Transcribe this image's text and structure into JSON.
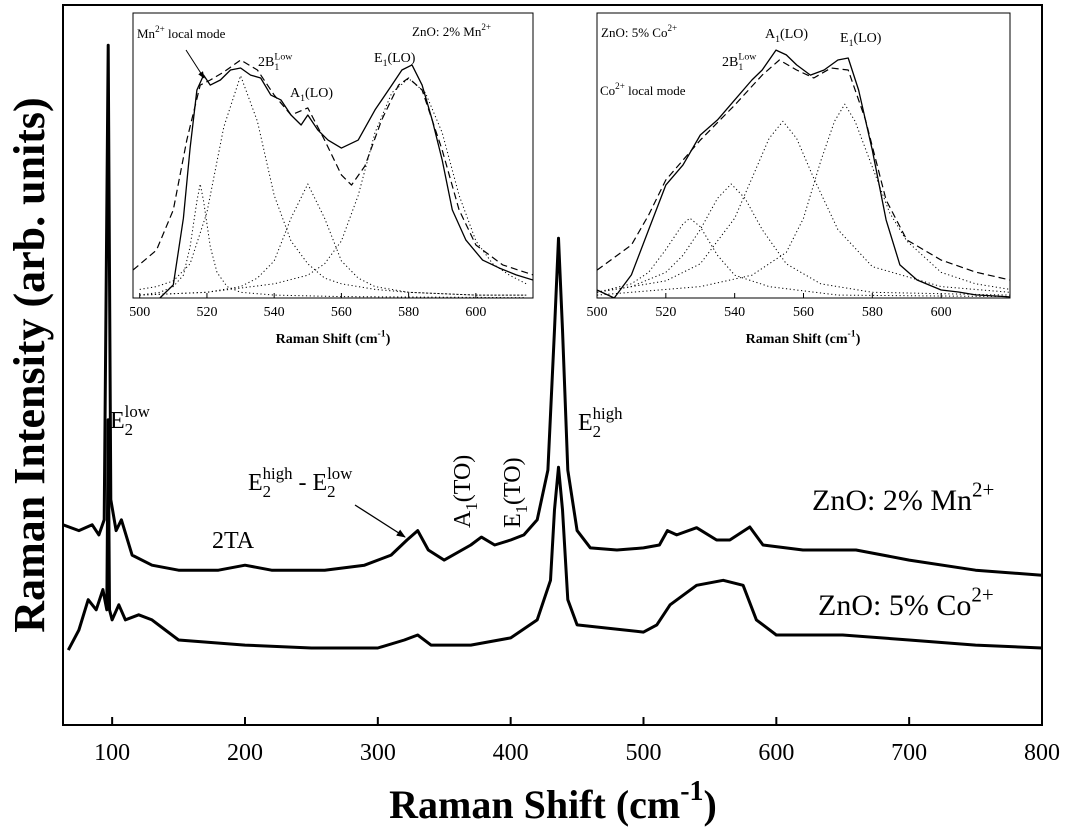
{
  "chart_data": [
    {
      "type": "line",
      "x_label": [
        {
          "t": "Raman Shift (cm"
        },
        {
          "t": "-1",
          "s": "sup"
        },
        {
          "t": ")"
        }
      ],
      "y_label": "Raman Intensity (arb. units)",
      "xlim": [
        63,
        800
      ],
      "ylim": [
        0,
        100
      ],
      "xticks": [
        100,
        200,
        300,
        400,
        500,
        600,
        700,
        800
      ],
      "series": [
        {
          "name": [
            {
              "t": "ZnO: 2% Mn"
            },
            {
              "t": "2+",
              "s": "sup"
            }
          ],
          "color": "#000000",
          "dash": "solid",
          "x": [
            63,
            75,
            85,
            90,
            94,
            97,
            99,
            103,
            107,
            115,
            130,
            150,
            180,
            200,
            220,
            260,
            290,
            310,
            322,
            330,
            338,
            350,
            370,
            378,
            388,
            400,
            410,
            420,
            428,
            433,
            436,
            439,
            443,
            450,
            460,
            480,
            500,
            512,
            518,
            525,
            540,
            555,
            565,
            580,
            590,
            620,
            660,
            700,
            750,
            800
          ],
          "values": [
            27.8,
            27,
            27.8,
            26.4,
            28.5,
            94.4,
            31.3,
            27,
            28.5,
            23.6,
            22.2,
            21.5,
            21.5,
            22.2,
            21.5,
            21.5,
            22.2,
            23.6,
            25.7,
            27,
            24.3,
            22.9,
            25,
            26.1,
            25,
            25.7,
            26.4,
            28.5,
            35.4,
            54.9,
            67.6,
            54.9,
            35.4,
            27,
            24.6,
            24.3,
            24.6,
            25,
            27,
            26.4,
            27.4,
            25.7,
            25.7,
            27.5,
            25,
            24.3,
            24.3,
            22.9,
            21.5,
            20.8
          ]
        },
        {
          "name": [
            {
              "t": "ZnO: 5% Co"
            },
            {
              "t": "2+",
              "s": "sup"
            }
          ],
          "color": "#000000",
          "dash": "solid",
          "x": [
            67,
            75,
            82,
            88,
            93,
            96,
            97,
            98,
            100,
            105,
            110,
            120,
            130,
            140,
            150,
            200,
            250,
            300,
            320,
            330,
            340,
            370,
            400,
            420,
            430,
            433,
            436,
            439,
            443,
            450,
            500,
            510,
            520,
            540,
            560,
            575,
            585,
            600,
            650,
            700,
            750,
            800
          ],
          "values": [
            10.4,
            13.2,
            17.4,
            16,
            18.8,
            16,
            42.4,
            16,
            14.6,
            16.7,
            14.6,
            15.3,
            14.6,
            13.2,
            11.8,
            11.1,
            10.7,
            10.7,
            11.8,
            12.5,
            11.1,
            11.1,
            12.1,
            14.6,
            20.1,
            29.9,
            35.8,
            29.9,
            17.4,
            13.9,
            12.9,
            13.9,
            16.7,
            19.4,
            20.1,
            19.4,
            14.6,
            12.5,
            12.5,
            11.8,
            11.1,
            10.7
          ]
        }
      ],
      "annotations": [
        {
          "parts": [
            {
              "t": "E"
            },
            {
              "t": "2",
              "s": "sub"
            },
            {
              "t": "low",
              "s": "sup"
            }
          ]
        },
        {
          "parts": [
            {
              "t": "2TA"
            }
          ]
        },
        {
          "parts": [
            {
              "t": "E"
            },
            {
              "t": "2",
              "s": "sub"
            },
            {
              "t": "high",
              "s": "sup"
            },
            {
              "t": " - E"
            },
            {
              "t": "2",
              "s": "sub"
            },
            {
              "t": "low",
              "s": "sup"
            }
          ]
        },
        {
          "parts": [
            {
              "t": "A"
            },
            {
              "t": "1",
              "s": "sub"
            },
            {
              "t": "(TO)"
            }
          ]
        },
        {
          "parts": [
            {
              "t": "E"
            },
            {
              "t": "1",
              "s": "sub"
            },
            {
              "t": "(TO)"
            }
          ]
        },
        {
          "parts": [
            {
              "t": "E"
            },
            {
              "t": "2",
              "s": "sub"
            },
            {
              "t": "high",
              "s": "sup"
            }
          ]
        }
      ]
    },
    {
      "type": "line",
      "x_label": [
        {
          "t": "Raman Shift (cm"
        },
        {
          "t": "-1",
          "s": "sup"
        },
        {
          "t": ")"
        }
      ],
      "xlim": [
        498,
        617
      ],
      "ylim": [
        0,
        100
      ],
      "xticks": [
        500,
        520,
        540,
        560,
        580,
        600
      ],
      "series": [
        {
          "color": "#000000",
          "dash": "solid",
          "x": [
            506,
            510,
            513,
            515,
            517,
            519,
            521,
            524,
            527,
            530,
            533,
            536,
            539,
            542,
            545,
            548,
            550,
            553,
            556,
            560,
            565,
            570,
            575,
            578,
            581,
            584,
            587,
            590,
            593,
            597,
            602,
            607,
            612,
            617
          ],
          "values": [
            0,
            4.6,
            28,
            52.6,
            73,
            78.2,
            74.7,
            76.5,
            80,
            80.7,
            78.2,
            77.2,
            71.2,
            69.5,
            64.2,
            60.7,
            64.2,
            58.9,
            55.4,
            52.6,
            55.4,
            66,
            74.7,
            80,
            81.8,
            74.7,
            62.5,
            48.4,
            30.9,
            20.4,
            13.3,
            10.5,
            8.1,
            6.3
          ]
        },
        {
          "color": "#000000",
          "dash": "dashed",
          "x": [
            498,
            505,
            510,
            514,
            518,
            521,
            525,
            530,
            535,
            540,
            545,
            550,
            555,
            560,
            563,
            567,
            572,
            577,
            580,
            584,
            590,
            595,
            600,
            608,
            617
          ],
          "values": [
            9.8,
            16.8,
            30.9,
            55.4,
            74.7,
            76.5,
            79.3,
            83.5,
            80,
            71.2,
            64.2,
            66.7,
            55.4,
            43.2,
            39.6,
            46.3,
            62.5,
            74.7,
            77.2,
            73,
            51.9,
            30.9,
            18.6,
            11.6,
            8.1
          ]
        },
        {
          "color": "#000000",
          "dash": "dotted",
          "x": [
            500,
            506,
            510,
            513,
            515,
            517,
            518,
            519,
            521,
            523,
            526,
            530,
            540,
            560,
            600,
            615
          ],
          "values": [
            1,
            2,
            4,
            8,
            18,
            34,
            40,
            34,
            18,
            9,
            4,
            2,
            1,
            0.5,
            0.2,
            0.1
          ]
        },
        {
          "color": "#000000",
          "dash": "dotted",
          "x": [
            500,
            505,
            510,
            515,
            520,
            525,
            530,
            535,
            540,
            545,
            550,
            555,
            560,
            570,
            580,
            600,
            615
          ],
          "values": [
            3,
            4,
            6,
            12,
            30,
            60,
            78,
            62,
            36,
            20,
            12,
            7,
            5,
            3,
            2,
            1,
            1
          ]
        },
        {
          "color": "#000000",
          "dash": "dotted",
          "x": [
            500,
            520,
            530,
            535,
            540,
            545,
            550,
            555,
            560,
            565,
            570,
            580,
            600,
            615
          ],
          "values": [
            1,
            2,
            4,
            7,
            13,
            28,
            40,
            28,
            13,
            7,
            4,
            2,
            1,
            1
          ]
        },
        {
          "color": "#000000",
          "dash": "dotted",
          "x": [
            500,
            520,
            540,
            550,
            555,
            560,
            565,
            570,
            575,
            580,
            585,
            590,
            595,
            600,
            605,
            610,
            615
          ],
          "values": [
            1,
            2,
            5,
            8,
            12,
            20,
            36,
            58,
            72,
            77,
            72,
            58,
            36,
            20,
            12,
            8,
            5
          ]
        }
      ],
      "annotations": [
        {
          "parts": [
            {
              "t": "Mn"
            },
            {
              "t": "2+",
              "s": "sup"
            },
            {
              "t": " local mode"
            }
          ]
        },
        {
          "parts": [
            {
              "t": "ZnO: 2% Mn"
            },
            {
              "t": "2+",
              "s": "sup"
            }
          ]
        },
        {
          "parts": [
            {
              "t": "2B"
            },
            {
              "t": "1",
              "s": "sub"
            },
            {
              "t": "Low",
              "s": "sup"
            }
          ]
        },
        {
          "parts": [
            {
              "t": "A"
            },
            {
              "t": "1",
              "s": "sub"
            },
            {
              "t": "(LO)"
            }
          ]
        },
        {
          "parts": [
            {
              "t": "E"
            },
            {
              "t": "1",
              "s": "sub"
            },
            {
              "t": "(LO)"
            }
          ]
        }
      ]
    },
    {
      "type": "line",
      "x_label": [
        {
          "t": "Raman Shift (cm"
        },
        {
          "t": "-1",
          "s": "sup"
        },
        {
          "t": ")"
        }
      ],
      "xlim": [
        500,
        620
      ],
      "ylim": [
        0,
        100
      ],
      "xticks": [
        500,
        520,
        540,
        560,
        580,
        600
      ],
      "series": [
        {
          "color": "#000000",
          "dash": "solid",
          "x": [
            500,
            505,
            510,
            515,
            520,
            525,
            530,
            535,
            540,
            545,
            548,
            552,
            555,
            558,
            562,
            566,
            570,
            573,
            576,
            580,
            584,
            588,
            593,
            600,
            605,
            610,
            620
          ],
          "values": [
            2.8,
            0,
            8.1,
            23.9,
            39.6,
            46.7,
            57.2,
            62.5,
            69.5,
            76.5,
            80,
            87,
            85.3,
            81.8,
            78.2,
            80,
            83.5,
            84.2,
            73,
            51.9,
            27.4,
            11.6,
            6.3,
            2.8,
            2.1,
            1.1,
            0.4
          ]
        },
        {
          "color": "#000000",
          "dash": "dashed",
          "x": [
            500,
            510,
            515,
            520,
            530,
            540,
            548,
            553,
            558,
            563,
            568,
            573,
            578,
            584,
            590,
            600,
            610,
            620
          ],
          "values": [
            9.8,
            18.6,
            29.1,
            41.4,
            55.4,
            67.7,
            78.2,
            83.5,
            80,
            77.2,
            80.7,
            80,
            62.5,
            34.4,
            20.4,
            13.3,
            9.1,
            6.3
          ]
        },
        {
          "color": "#000000",
          "dash": "dotted",
          "x": [
            500,
            510,
            515,
            520,
            525,
            527,
            530,
            535,
            540,
            550,
            570,
            620
          ],
          "values": [
            2,
            5,
            9,
            17,
            26,
            28,
            25,
            15,
            8,
            4,
            1,
            0.5
          ]
        },
        {
          "color": "#000000",
          "dash": "dotted",
          "x": [
            500,
            510,
            520,
            525,
            530,
            535,
            539,
            543,
            548,
            555,
            565,
            580,
            620
          ],
          "values": [
            2,
            4,
            9,
            15,
            24,
            35,
            40,
            35,
            24,
            12,
            5,
            2,
            1
          ]
        },
        {
          "color": "#000000",
          "dash": "dotted",
          "x": [
            500,
            520,
            530,
            540,
            545,
            550,
            554,
            558,
            563,
            570,
            580,
            600,
            620
          ],
          "values": [
            2,
            6,
            12,
            28,
            42,
            56,
            62,
            56,
            42,
            24,
            11,
            4,
            2
          ]
        },
        {
          "color": "#000000",
          "dash": "dotted",
          "x": [
            500,
            530,
            545,
            555,
            560,
            565,
            569,
            572,
            575,
            580,
            585,
            590,
            600,
            610,
            620
          ],
          "values": [
            1,
            4,
            8,
            16,
            28,
            48,
            62,
            68,
            62,
            46,
            30,
            20,
            9,
            5,
            3
          ]
        }
      ],
      "annotations": [
        {
          "parts": [
            {
              "t": "ZnO: 5% Co"
            },
            {
              "t": "2+",
              "s": "sup"
            }
          ]
        },
        {
          "parts": [
            {
              "t": "A"
            },
            {
              "t": "1",
              "s": "sub"
            },
            {
              "t": "(LO)"
            }
          ]
        },
        {
          "parts": [
            {
              "t": "2B"
            },
            {
              "t": "1",
              "s": "sub"
            },
            {
              "t": "Low",
              "s": "sup"
            }
          ]
        },
        {
          "parts": [
            {
              "t": "E"
            },
            {
              "t": "1",
              "s": "sub"
            },
            {
              "t": "(LO)"
            }
          ]
        },
        {
          "parts": [
            {
              "t": "Co"
            },
            {
              "t": "2+",
              "s": "sup"
            },
            {
              "t": " local mode"
            }
          ]
        }
      ]
    }
  ]
}
